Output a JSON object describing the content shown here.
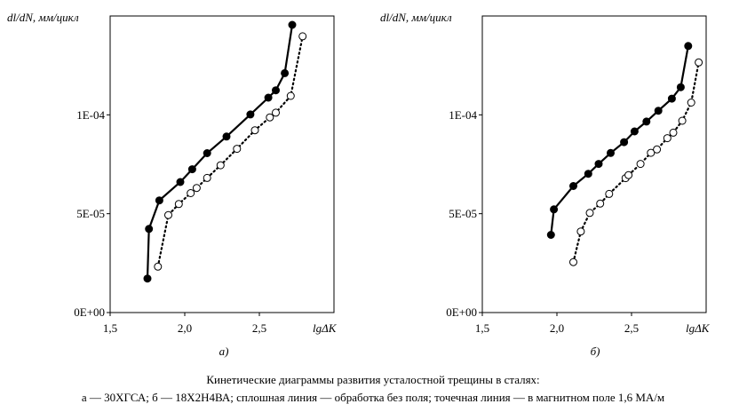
{
  "caption": {
    "line1": "Кинетические диаграммы развития усталостной трещины в сталях:",
    "line2": "а — 30ХГСА; б — 18Х2Н4ВА; сплошная линия — обработка без поля; точечная линия — в магнитном поле 1,6 МА/м"
  },
  "chart_data": [
    {
      "type": "line",
      "panel_label": "а)",
      "ylabel": "dl/dN, мм/цикл",
      "xlabel": "lgΔK",
      "xlim": [
        1.5,
        3.0
      ],
      "ylim": [
        0,
        0.00015
      ],
      "x_ticks": [
        "1,5",
        "2,0",
        "2,5"
      ],
      "y_ticks": [
        "0E+00",
        "5E-05",
        "1E-04"
      ],
      "series": [
        {
          "style": "solid",
          "marker": "filled",
          "x": [
            1.75,
            1.76,
            1.83,
            1.97,
            2.05,
            2.15,
            2.28,
            2.44,
            2.56,
            2.61,
            2.67,
            2.72
          ],
          "y": [
            1.72e-05,
            4.23e-05,
            5.67e-05,
            6.6e-05,
            7.25e-05,
            8.06e-05,
            8.9e-05,
            0.0001002,
            0.0001087,
            0.0001124,
            0.0001211,
            0.0001455
          ]
        },
        {
          "style": "dotted",
          "marker": "open",
          "x": [
            1.82,
            1.89,
            1.96,
            2.04,
            2.08,
            2.15,
            2.24,
            2.35,
            2.47,
            2.57,
            2.61,
            2.71,
            2.79
          ],
          "y": [
            2.32e-05,
            4.93e-05,
            5.49e-05,
            6.04e-05,
            6.3e-05,
            6.81e-05,
            7.45e-05,
            8.28e-05,
            9.22e-05,
            9.87e-05,
            0.0001011,
            0.0001096,
            0.0001397
          ]
        }
      ]
    },
    {
      "type": "line",
      "panel_label": "б)",
      "ylabel": "dl/dN, мм/цикл",
      "xlabel": "lgΔK",
      "xlim": [
        1.5,
        3.0
      ],
      "ylim": [
        0,
        0.00015
      ],
      "x_ticks": [
        "1,5",
        "2,0",
        "2,5"
      ],
      "y_ticks": [
        "0E+00",
        "5E-05",
        "1E-04"
      ],
      "series": [
        {
          "style": "solid",
          "marker": "filled",
          "x": [
            1.96,
            1.98,
            2.11,
            2.21,
            2.28,
            2.36,
            2.45,
            2.52,
            2.6,
            2.68,
            2.77,
            2.83,
            2.88
          ],
          "y": [
            3.93e-05,
            5.22e-05,
            6.4e-05,
            7.02e-05,
            7.52e-05,
            8.07e-05,
            8.62e-05,
            9.16e-05,
            9.66e-05,
            0.0001021,
            0.0001082,
            0.000114,
            0.0001348
          ]
        },
        {
          "style": "dotted",
          "marker": "open",
          "x": [
            2.11,
            2.16,
            2.22,
            2.29,
            2.35,
            2.46,
            2.48,
            2.56,
            2.63,
            2.67,
            2.74,
            2.78,
            2.84,
            2.9,
            2.95
          ],
          "y": [
            2.55e-05,
            4.1e-05,
            5.04e-05,
            5.51e-05,
            6e-05,
            6.8e-05,
            6.95e-05,
            7.52e-05,
            8.08e-05,
            8.25e-05,
            8.82e-05,
            9.1e-05,
            9.7e-05,
            0.0001062,
            0.0001265
          ]
        }
      ]
    }
  ]
}
